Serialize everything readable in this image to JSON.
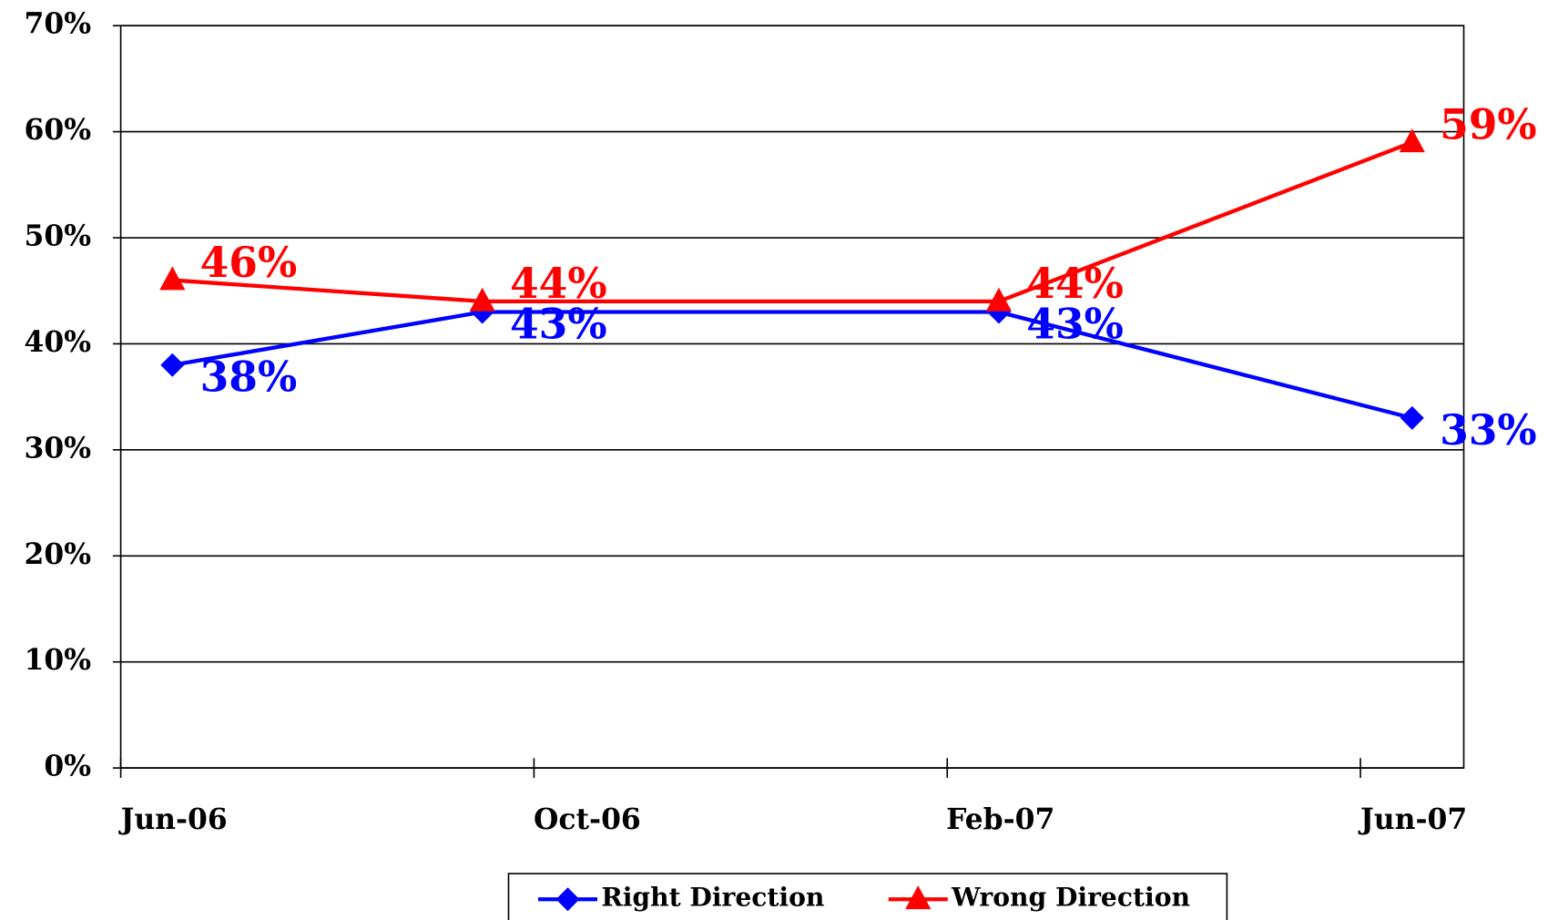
{
  "chart_data": {
    "type": "line",
    "x": [
      "2006-06",
      "2006-09",
      "2007-02",
      "2007-06"
    ],
    "xlim": [
      "2006-06",
      "2007-07"
    ],
    "xticks": [
      {
        "value": "2006-06",
        "label": "Jun-06"
      },
      {
        "value": "2006-10",
        "label": "Oct-06"
      },
      {
        "value": "2007-02",
        "label": "Feb-07"
      },
      {
        "value": "2007-06",
        "label": "Jun-07"
      }
    ],
    "ylim": [
      0,
      70
    ],
    "yticks": [
      {
        "value": 0,
        "label": "0%"
      },
      {
        "value": 10,
        "label": "10%"
      },
      {
        "value": 20,
        "label": "20%"
      },
      {
        "value": 30,
        "label": "30%"
      },
      {
        "value": 40,
        "label": "40%"
      },
      {
        "value": 50,
        "label": "50%"
      },
      {
        "value": 60,
        "label": "60%"
      },
      {
        "value": 70,
        "label": "70%"
      }
    ],
    "grid": true,
    "legend": "bottom",
    "series": [
      {
        "name": "Right Direction",
        "color": "#0000ff",
        "marker": "diamond",
        "values": [
          38,
          43,
          43,
          33
        ],
        "value_labels": [
          "38%",
          "43%",
          "43%",
          "33%"
        ]
      },
      {
        "name": "Wrong Direction",
        "color": "#ff0000",
        "marker": "triangle",
        "values": [
          46,
          44,
          44,
          59
        ],
        "value_labels": [
          "46%",
          "44%",
          "44%",
          "59%"
        ]
      }
    ]
  }
}
